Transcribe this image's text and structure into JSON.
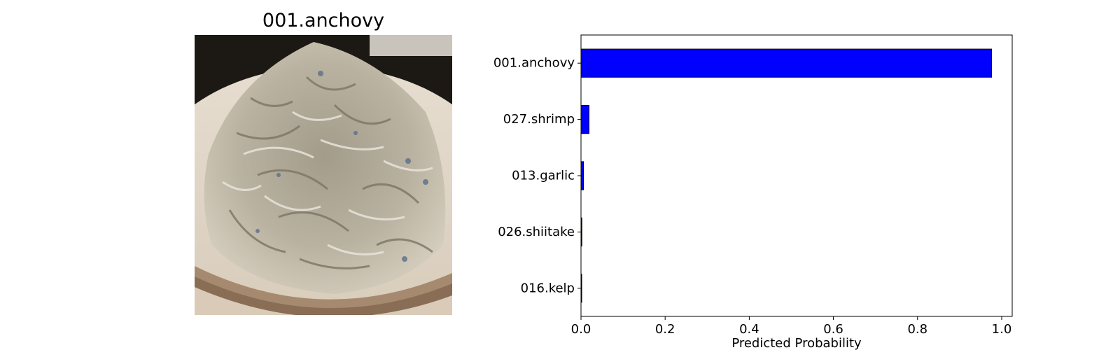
{
  "image_panel": {
    "title": "001.anchovy",
    "photo_icon": "dried-anchovies-on-plate-photo"
  },
  "chart_data": {
    "type": "bar",
    "orientation": "horizontal",
    "title": "",
    "categories": [
      "001.anchovy",
      "027.shrimp",
      "013.garlic",
      "026.shiitake",
      "016.kelp"
    ],
    "values": [
      0.976,
      0.019,
      0.006,
      0.002,
      0.001
    ],
    "xlabel": "Predicted Probability",
    "ylabel": "",
    "xlim": [
      0.0,
      1.025
    ],
    "xticks": [
      "0.0",
      "0.2",
      "0.4",
      "0.6",
      "0.8",
      "1.0"
    ],
    "xtick_values": [
      0.0,
      0.2,
      0.4,
      0.6,
      0.8,
      1.0
    ],
    "bar_color": "#0000ff",
    "bar_edge_color": "#000000",
    "grid": false,
    "legend": "none"
  }
}
